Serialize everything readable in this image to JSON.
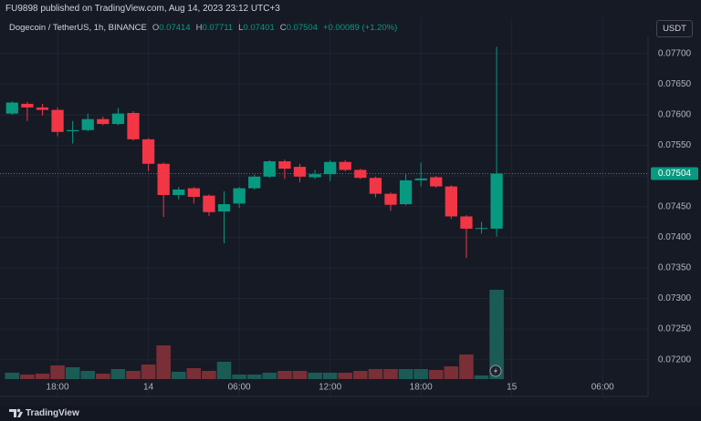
{
  "header": {
    "publisher": "FU9898 published on TradingView.com, Aug 14, 2023 23:12 UTC+3"
  },
  "legend": {
    "symbol": "Dogecoin / TetherUS, 1h, BINANCE",
    "ohlc": [
      {
        "key": "O",
        "value": 0.07414
      },
      {
        "key": "H",
        "value": 0.07711
      },
      {
        "key": "L",
        "value": 0.07401
      },
      {
        "key": "C",
        "value": 0.07504
      }
    ],
    "change": "+0.00089 (+1.20%)"
  },
  "currency_button": "USDT",
  "footer": {
    "brand": "TradingView"
  },
  "chart_data": {
    "type": "candlestick",
    "x": [
      15,
      16,
      17,
      18,
      19,
      20,
      21,
      22,
      23,
      24,
      25,
      26,
      27,
      28,
      29,
      30,
      31,
      32,
      33,
      34,
      35,
      36,
      37,
      38,
      39,
      40,
      41,
      42,
      43,
      44,
      45,
      46,
      47
    ],
    "open": [
      0.07602,
      0.07618,
      0.07612,
      0.07608,
      0.07573,
      0.07575,
      0.07593,
      0.07585,
      0.07603,
      0.0756,
      0.0752,
      0.07469,
      0.0748,
      0.07468,
      0.07442,
      0.07455,
      0.0748,
      0.07499,
      0.07524,
      0.07515,
      0.07498,
      0.07503,
      0.07523,
      0.0751,
      0.07497,
      0.07471,
      0.07454,
      0.07493,
      0.07498,
      0.07483,
      0.07434,
      0.07414,
      0.07414
    ],
    "high": [
      0.07622,
      0.07621,
      0.07618,
      0.07612,
      0.0759,
      0.07602,
      0.07597,
      0.07611,
      0.07606,
      0.07562,
      0.07522,
      0.07482,
      0.07482,
      0.0747,
      0.07475,
      0.07482,
      0.07502,
      0.07526,
      0.07527,
      0.0752,
      0.0751,
      0.07526,
      0.07526,
      0.07512,
      0.07499,
      0.07473,
      0.07504,
      0.07522,
      0.075,
      0.07485,
      0.07436,
      0.07425,
      0.07711
    ],
    "low": [
      0.076,
      0.0759,
      0.07599,
      0.07565,
      0.07553,
      0.07573,
      0.07583,
      0.07583,
      0.07558,
      0.07508,
      0.07433,
      0.07462,
      0.07455,
      0.07435,
      0.0739,
      0.07448,
      0.07478,
      0.07497,
      0.07495,
      0.0749,
      0.07495,
      0.07492,
      0.07508,
      0.07495,
      0.07465,
      0.07443,
      0.07452,
      0.07483,
      0.07481,
      0.0743,
      0.07366,
      0.07406,
      0.07401
    ],
    "close": [
      0.0762,
      0.07612,
      0.07608,
      0.07572,
      0.07575,
      0.07593,
      0.07585,
      0.07602,
      0.0756,
      0.0752,
      0.07469,
      0.07478,
      0.07466,
      0.07441,
      0.07454,
      0.0748,
      0.07499,
      0.07524,
      0.07512,
      0.07499,
      0.07503,
      0.07523,
      0.0751,
      0.07497,
      0.07471,
      0.07453,
      0.07493,
      0.07496,
      0.07483,
      0.07434,
      0.07414,
      0.07415,
      0.07504
    ],
    "volume": [
      7,
      5,
      6,
      15,
      13,
      9,
      6,
      11,
      9,
      16,
      37,
      8,
      12,
      9,
      19,
      5,
      5,
      7,
      9,
      9,
      7,
      7,
      7,
      9,
      11,
      11,
      11,
      11,
      10,
      14,
      27,
      4,
      98
    ],
    "up_color": "#089981",
    "down_color": "#f23645",
    "volume_up_color": "#1b5b56",
    "volume_down_color": "#7a2e36",
    "last_price": 0.07504,
    "xlim": [
      14.5,
      57
    ],
    "xticks": [
      {
        "value": 18,
        "label": "18:00"
      },
      {
        "value": 24,
        "label": "14"
      },
      {
        "value": 30,
        "label": "06:00"
      },
      {
        "value": 36,
        "label": "12:00"
      },
      {
        "value": 42,
        "label": "18:00"
      },
      {
        "value": 48,
        "label": "15"
      },
      {
        "value": 54,
        "label": "06:00"
      }
    ],
    "ylim": [
      0.0714,
      0.07728
    ],
    "yticks": [
      {
        "value": 0.077,
        "label": "0.07700"
      },
      {
        "value": 0.0765,
        "label": "0.07650"
      },
      {
        "value": 0.076,
        "label": "0.07600"
      },
      {
        "value": 0.0755,
        "label": "0.07550"
      },
      {
        "value": 0.075,
        "label": "0.07500"
      },
      {
        "value": 0.0745,
        "label": "0.07450"
      },
      {
        "value": 0.074,
        "label": "0.07400"
      },
      {
        "value": 0.0735,
        "label": "0.07350"
      },
      {
        "value": 0.073,
        "label": "0.07300"
      },
      {
        "value": 0.0725,
        "label": "0.07250"
      },
      {
        "value": 0.072,
        "label": "0.07200"
      }
    ],
    "grid": true
  }
}
